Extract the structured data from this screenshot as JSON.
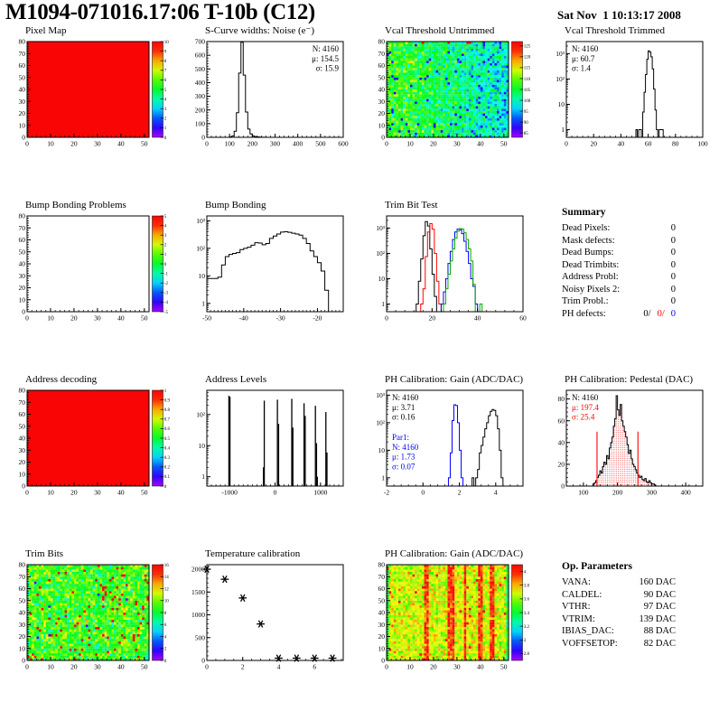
{
  "header": {
    "title": "M1094-071016.17:06 T-10b (C12)",
    "date": "Sat Nov  1 10:13:17 2008"
  },
  "colors": {
    "accent_red": "#ff0000",
    "accent_blue": "#0000ff",
    "accent_green": "#00aa00",
    "map_red": "#fa0f0f"
  },
  "summary": {
    "title": "Summary",
    "rows": [
      {
        "label": "Dead Pixels:",
        "value": "0"
      },
      {
        "label": "Mask defects:",
        "value": "0"
      },
      {
        "label": "Dead Bumps:",
        "value": "0"
      },
      {
        "label": "Dead Trimbits:",
        "value": "0"
      },
      {
        "label": "Address Probl:",
        "value": "0"
      },
      {
        "label": "Noisy Pixels 2:",
        "value": "0"
      },
      {
        "label": "Trim Probl.:",
        "value": "0"
      }
    ],
    "ph_defects": {
      "label": "PH defects:",
      "v1": "0/",
      "v2": "0/",
      "v3": "0"
    }
  },
  "op_parameters": {
    "title": "Op. Parameters",
    "rows": [
      {
        "label": "VANA:",
        "value": "160 DAC"
      },
      {
        "label": "CALDEL:",
        "value": "90 DAC"
      },
      {
        "label": "VTHR:",
        "value": "97 DAC"
      },
      {
        "label": "VTRIM:",
        "value": "139 DAC"
      },
      {
        "label": "IBIAS_DAC:",
        "value": "88 DAC"
      },
      {
        "label": "VOFFSETOP:",
        "value": "82 DAC"
      }
    ]
  },
  "chart_data": [
    {
      "id": "pixel-map",
      "type": "heatmap",
      "title": "Pixel Map",
      "pattern": "solid",
      "x": {
        "min": 0,
        "max": 52,
        "ticks": [
          0,
          10,
          20,
          30,
          40,
          50
        ],
        "minor": 2
      },
      "y": {
        "min": 0,
        "max": 80,
        "ticks": [
          0,
          10,
          20,
          30,
          40,
          50,
          60,
          70,
          80
        ],
        "minor": 2
      },
      "z": {
        "min": 0,
        "max": 10,
        "ticks": [
          0,
          1,
          2,
          3,
          4,
          5,
          6,
          7,
          8,
          9,
          10
        ]
      }
    },
    {
      "id": "scurve-noise",
      "type": "hist",
      "title": "S-Curve widths: Noise (e⁻)",
      "yscale": "linear",
      "x": {
        "min": 0,
        "max": 600,
        "ticks": [
          0,
          100,
          200,
          300,
          400,
          500,
          600
        ],
        "minor": 20
      },
      "y": {
        "min": 0,
        "max": 700,
        "ticks": [
          0,
          100,
          200,
          300,
          400,
          500,
          600,
          700
        ],
        "minor": 20
      },
      "series": [
        {
          "color": "#000000",
          "start": 100,
          "binw": 10,
          "values": [
            3,
            10,
            45,
            180,
            470,
            695,
            455,
            185,
            60,
            25,
            10,
            5,
            3,
            2,
            1,
            1
          ]
        }
      ],
      "stats": [
        {
          "align": "right",
          "lines": [
            {
              "text": "N: 4160",
              "color": "#000000"
            },
            {
              "text": "μ: 154.5",
              "color": "#000000"
            },
            {
              "text": "σ: 15.9",
              "color": "#000000"
            }
          ]
        }
      ]
    },
    {
      "id": "vcal-untrimmed",
      "type": "heatmap",
      "title": "Vcal Threshold Untrimmed",
      "pattern": "noise",
      "x": {
        "min": 0,
        "max": 52,
        "ticks": [
          0,
          10,
          20,
          30,
          40,
          50
        ],
        "minor": 2
      },
      "y": {
        "min": 0,
        "max": 80,
        "ticks": [
          0,
          10,
          20,
          30,
          40,
          50,
          60,
          70,
          80
        ],
        "minor": 2
      },
      "z": {
        "min": 83,
        "max": 127,
        "ticks": [
          85,
          90,
          95,
          100,
          105,
          110,
          115,
          120,
          125
        ]
      },
      "noise": {
        "seed": 11,
        "base": 108,
        "gradient": -10,
        "sigma": 4,
        "specks": [
          {
            "frac": 0.03,
            "value": 88
          }
        ],
        "top_row": {
          "frac": 0.12,
          "value": 124
        }
      }
    },
    {
      "id": "vcal-trimmed",
      "type": "hist",
      "title": "Vcal Threshold Trimmed",
      "yscale": "log",
      "x": {
        "min": 0,
        "max": 100,
        "ticks": [
          0,
          20,
          40,
          60,
          80,
          100
        ],
        "minor": 4
      },
      "y": {
        "min": 0.5,
        "max": 3000
      },
      "series": [
        {
          "color": "#000000",
          "start": 50,
          "binw": 1,
          "values": [
            0,
            1,
            0,
            1,
            1,
            0,
            5,
            30,
            150,
            600,
            1300,
            1150,
            750,
            250,
            40,
            6,
            1,
            0,
            1,
            1,
            1
          ]
        }
      ],
      "stats": [
        {
          "align": "left",
          "lines": [
            {
              "text": "N: 4160",
              "color": "#000000"
            },
            {
              "text": "μ: 60.7",
              "color": "#000000"
            },
            {
              "text": "σ:  1.4",
              "color": "#000000"
            }
          ]
        }
      ]
    },
    {
      "id": "bump-problems",
      "type": "heatmap",
      "title": "Bump Bonding Problems",
      "pattern": "empty",
      "x": {
        "min": 0,
        "max": 52,
        "ticks": [
          0,
          10,
          20,
          30,
          40,
          50
        ],
        "minor": 2
      },
      "y": {
        "min": 0,
        "max": 80,
        "ticks": [
          0,
          10,
          20,
          30,
          40,
          50,
          60,
          70,
          80
        ],
        "minor": 2
      },
      "z": {
        "min": -5,
        "max": 5,
        "ticks": [
          -5,
          -4,
          -3,
          -2,
          -1,
          0,
          1,
          2,
          3,
          4,
          5
        ]
      }
    },
    {
      "id": "bump-bonding",
      "type": "hist",
      "title": "Bump Bonding",
      "yscale": "log",
      "x": {
        "min": -50,
        "max": -13,
        "ticks": [
          -50,
          -40,
          -30,
          -20
        ],
        "minor": 1
      },
      "y": {
        "min": 0.5,
        "max": 1500
      },
      "series": [
        {
          "color": "#000000",
          "start": -50,
          "binw": 1,
          "values": [
            8,
            8,
            8,
            9,
            25,
            50,
            60,
            65,
            70,
            90,
            100,
            110,
            130,
            160,
            155,
            135,
            150,
            230,
            280,
            330,
            390,
            400,
            380,
            355,
            330,
            300,
            230,
            150,
            80,
            50,
            30,
            15,
            3
          ]
        }
      ]
    },
    {
      "id": "trim-bit-test",
      "type": "hist",
      "title": "Trim Bit Test",
      "yscale": "log",
      "x": {
        "min": 0,
        "max": 60,
        "ticks": [
          0,
          20,
          40,
          60
        ],
        "minor": 4
      },
      "y": {
        "min": 0.5,
        "max": 3000
      },
      "series": [
        {
          "color": "#000000",
          "start": 13,
          "binw": 1,
          "values": [
            1,
            8,
            60,
            500,
            1800,
            1200,
            150,
            15,
            2
          ]
        },
        {
          "color": "#ff0000",
          "start": 15,
          "binw": 1,
          "values": [
            1,
            4,
            75,
            700,
            1500,
            900,
            100,
            8,
            1
          ],
          "baseline": true
        },
        {
          "color": "#0000ff",
          "start": 24,
          "binw": 1,
          "values": [
            1,
            3,
            10,
            40,
            120,
            350,
            700,
            900,
            850,
            600,
            300,
            120,
            40,
            10,
            5,
            1
          ]
        },
        {
          "color": "#00aa00",
          "start": 25,
          "binw": 1,
          "values": [
            1,
            4,
            15,
            50,
            150,
            400,
            750,
            950,
            900,
            650,
            350,
            150,
            50,
            6,
            0,
            0,
            1
          ],
          "baseline": true
        }
      ]
    },
    {
      "id": "address-decoding",
      "type": "heatmap",
      "title": "Address decoding",
      "pattern": "solid",
      "x": {
        "min": 0,
        "max": 52,
        "ticks": [
          0,
          10,
          20,
          30,
          40,
          50
        ],
        "minor": 2
      },
      "y": {
        "min": 0,
        "max": 80,
        "ticks": [
          0,
          10,
          20,
          30,
          40,
          50,
          60,
          70,
          80
        ],
        "minor": 2
      },
      "z": {
        "min": 0,
        "max": 1,
        "ticks": [
          0,
          0.1,
          0.2,
          0.3,
          0.4,
          0.5,
          0.6,
          0.7,
          0.8,
          0.9,
          1
        ]
      }
    },
    {
      "id": "address-levels",
      "type": "bars",
      "title": "Address Levels",
      "yscale": "log",
      "x": {
        "min": -1500,
        "max": 1500,
        "ticks": [
          -1000,
          0,
          1000
        ],
        "minor": 100
      },
      "y": {
        "min": 0.5,
        "max": 600
      },
      "barw": 25,
      "bars": [
        [
          -1015,
          400
        ],
        [
          -992,
          370
        ],
        [
          -255,
          2
        ],
        [
          -237,
          280
        ],
        [
          52,
          300
        ],
        [
          78,
          50
        ],
        [
          368,
          320
        ],
        [
          392,
          38
        ],
        [
          638,
          230
        ],
        [
          663,
          90
        ],
        [
          888,
          190
        ],
        [
          912,
          12
        ],
        [
          930,
          1
        ],
        [
          1118,
          120
        ],
        [
          1142,
          6
        ]
      ]
    },
    {
      "id": "ph-gain-hist",
      "type": "hist",
      "title": "PH Calibration: Gain (ADC/DAC)",
      "yscale": "log",
      "x": {
        "min": -2,
        "max": 5.5,
        "ticks": [
          -2,
          0,
          2,
          4
        ],
        "minor": 0.4
      },
      "y": {
        "min": 0.5,
        "max": 1500
      },
      "series": [
        {
          "color": "#0000ff",
          "start": 1.4,
          "binw": 0.1,
          "values": [
            1,
            8,
            120,
            450,
            420,
            100,
            10,
            1
          ],
          "baseline": true
        },
        {
          "color": "#000000",
          "start": 2.6,
          "binw": 0.1,
          "values": [
            0,
            1,
            0,
            1,
            2,
            8,
            15,
            30,
            60,
            100,
            180,
            260,
            300,
            280,
            180,
            60,
            10,
            1
          ]
        }
      ],
      "stats": [
        {
          "align": "left",
          "lines": [
            {
              "text": "N: 4160",
              "color": "#000000"
            },
            {
              "text": "μ: 3.71",
              "color": "#000000"
            },
            {
              "text": "σ: 0.16",
              "color": "#000000"
            }
          ]
        },
        {
          "align": "left-lower",
          "lines": [
            {
              "text": "Par1:",
              "color": "#0000ff"
            },
            {
              "text": "N: 4160",
              "color": "#0000ff"
            },
            {
              "text": "μ: 1.73",
              "color": "#0000ff"
            },
            {
              "text": "σ: 0.07",
              "color": "#0000ff"
            }
          ]
        }
      ]
    },
    {
      "id": "ph-pedestal",
      "type": "hist",
      "title": "PH Calibration: Pedestal (DAC)",
      "yscale": "linear",
      "x": {
        "min": 50,
        "max": 450,
        "ticks": [
          100,
          200,
          300,
          400
        ],
        "minor": 20
      },
      "y": {
        "min": 0,
        "max": 88,
        "ticks": [
          0,
          20,
          40,
          60,
          80
        ],
        "minor": 4
      },
      "series": [
        {
          "color": "#000000",
          "start": 128,
          "binw": 4,
          "fill": "red-dots",
          "values": [
            2,
            3,
            5,
            8,
            10,
            14,
            12,
            18,
            22,
            20,
            28,
            25,
            35,
            40,
            45,
            55,
            62,
            83,
            70,
            65,
            75,
            60,
            55,
            50,
            45,
            38,
            30,
            33,
            25,
            20,
            18,
            15,
            12,
            10,
            8,
            9,
            6,
            5,
            7,
            4,
            3,
            5,
            3,
            2,
            2,
            1
          ]
        }
      ],
      "vlines": [
        {
          "x": 140,
          "h": 50,
          "color": "#ff0000"
        },
        {
          "x": 260,
          "h": 50,
          "color": "#ff0000"
        }
      ],
      "stats": [
        {
          "align": "left",
          "lines": [
            {
              "text": "N: 4160",
              "color": "#000000"
            },
            {
              "text": "μ: 197.4",
              "color": "#ff0000"
            },
            {
              "text": "σ: 25.4",
              "color": "#ff0000"
            }
          ]
        }
      ]
    },
    {
      "id": "trim-bits",
      "type": "heatmap",
      "title": "Trim Bits",
      "pattern": "noise",
      "x": {
        "min": 0,
        "max": 52,
        "ticks": [
          0,
          10,
          20,
          30,
          40,
          50
        ],
        "minor": 2
      },
      "y": {
        "min": 0,
        "max": 80,
        "ticks": [
          0,
          10,
          20,
          30,
          40,
          50,
          60,
          70,
          80
        ],
        "minor": 2
      },
      "z": {
        "min": 0,
        "max": 16,
        "ticks": [
          0,
          2,
          4,
          6,
          8,
          10,
          12,
          14,
          16
        ]
      },
      "noise": {
        "seed": 22,
        "base": 9,
        "gradient": 0,
        "sigma": 1.4,
        "specks": [
          {
            "frac": 0.05,
            "value": 15.8,
            "right_weight": true
          },
          {
            "frac": 0.02,
            "value": 5.2
          },
          {
            "frac": 0.004,
            "value": 1.2
          }
        ]
      }
    },
    {
      "id": "temp-calibration",
      "type": "scatter",
      "title": "Temperature calibration",
      "yscale": "linear",
      "x": {
        "min": 0,
        "max": 7.6,
        "ticks": [
          0,
          2,
          4,
          6
        ],
        "minor": 0.5
      },
      "y": {
        "min": 0,
        "max": 2100,
        "ticks": [
          0,
          500,
          1000,
          1500,
          2000
        ],
        "minor": 100
      },
      "marker": "asterisk",
      "points": [
        [
          0,
          2000
        ],
        [
          1,
          1780
        ],
        [
          2,
          1370
        ],
        [
          3,
          800
        ],
        [
          4,
          50
        ],
        [
          5,
          50
        ],
        [
          6,
          50
        ],
        [
          7,
          50
        ]
      ]
    },
    {
      "id": "ph-gain-map",
      "type": "heatmap",
      "title": "PH Calibration: Gain (ADC/DAC)",
      "pattern": "noise",
      "x": {
        "min": 0,
        "max": 52,
        "ticks": [
          0,
          10,
          20,
          30,
          40,
          50
        ],
        "minor": 2
      },
      "y": {
        "min": 0,
        "max": 80,
        "ticks": [
          0,
          10,
          20,
          30,
          40,
          50,
          60,
          70,
          80
        ],
        "minor": 2
      },
      "z": {
        "min": 2.7,
        "max": 4.1,
        "ticks": [
          2.8,
          3,
          3.2,
          3.4,
          3.6,
          3.8,
          4
        ]
      },
      "noise": {
        "seed": 33,
        "base": 3.68,
        "gradient": 0,
        "sigma": 0.09,
        "stripes": [
          16,
          17,
          26,
          27,
          28,
          33,
          39,
          40,
          44,
          45
        ],
        "stripe_base": 3.95,
        "edge_cols": [
          0,
          51
        ],
        "edge_base": 3.4,
        "specks": [
          {
            "frac": 0.012,
            "value": 4.05
          }
        ]
      }
    }
  ]
}
